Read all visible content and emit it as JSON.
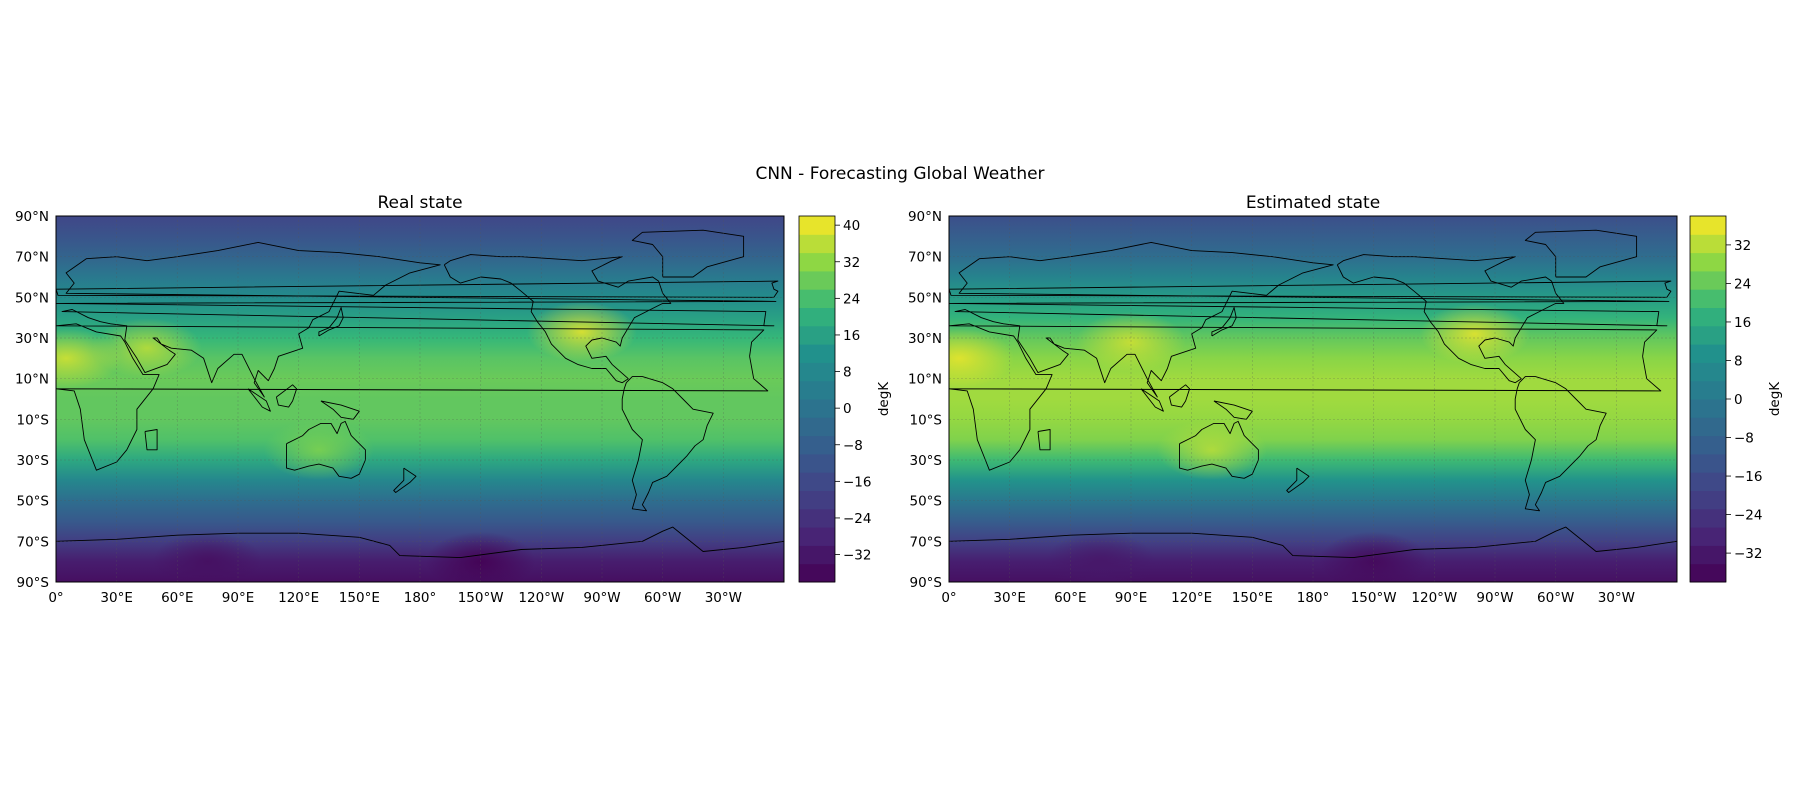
{
  "figure": {
    "suptitle": "CNN - Forecasting Global Weather"
  },
  "chart_data": [
    {
      "type": "heatmap",
      "title": "Real state",
      "projection": "PlateCarree, central longitude 180",
      "xticks": [
        "0°",
        "30°E",
        "60°E",
        "90°E",
        "120°E",
        "150°E",
        "180°",
        "150°W",
        "120°W",
        "90°W",
        "60°W",
        "30°W"
      ],
      "yticks": [
        "90°N",
        "70°N",
        "50°N",
        "30°N",
        "10°N",
        "10°S",
        "30°S",
        "50°S",
        "70°S",
        "90°S"
      ],
      "xlim": [
        0,
        360
      ],
      "ylim": [
        -90,
        90
      ],
      "grid": true,
      "coastlines": true,
      "colormap": "viridis",
      "colorbar": {
        "label": "degK",
        "ticks": [
          40,
          32,
          24,
          16,
          8,
          0,
          -8,
          -16,
          -24,
          -32
        ],
        "tick_labels": [
          "40",
          "32",
          "24",
          "16",
          "8",
          "0",
          "−8",
          "−16",
          "−24",
          "−32"
        ],
        "range": [
          -38,
          42
        ]
      },
      "latitude_profile": {
        "lat": [
          90,
          80,
          70,
          60,
          50,
          40,
          30,
          20,
          10,
          0,
          -10,
          -20,
          -30,
          -40,
          -50,
          -60,
          -70,
          -80,
          -90
        ],
        "value": [
          -17,
          -12,
          -6,
          2,
          10,
          16,
          22,
          26,
          28,
          27,
          27,
          25,
          18,
          8,
          -2,
          -10,
          -20,
          -30,
          -34
        ]
      },
      "hotspots": [
        {
          "lon": 5,
          "lat": 20,
          "value": 38
        },
        {
          "lon": 260,
          "lat": 33,
          "value": 40
        },
        {
          "lon": 45,
          "lat": 25,
          "value": 36
        },
        {
          "lon": 130,
          "lat": -25,
          "value": 30
        },
        {
          "lon": 210,
          "lat": -80,
          "value": -38
        },
        {
          "lon": 75,
          "lat": -80,
          "value": -34
        }
      ]
    },
    {
      "type": "heatmap",
      "title": "Estimated state",
      "projection": "PlateCarree, central longitude 180",
      "xticks": [
        "0°",
        "30°E",
        "60°E",
        "90°E",
        "120°E",
        "150°E",
        "180°",
        "150°W",
        "120°W",
        "90°W",
        "60°W",
        "30°W"
      ],
      "yticks": [
        "90°N",
        "70°N",
        "50°N",
        "30°N",
        "10°N",
        "10°S",
        "30°S",
        "50°S",
        "70°S",
        "90°S"
      ],
      "xlim": [
        0,
        360
      ],
      "ylim": [
        -90,
        90
      ],
      "grid": true,
      "coastlines": true,
      "colormap": "viridis",
      "colorbar": {
        "label": "degK",
        "ticks": [
          32,
          24,
          16,
          8,
          0,
          -8,
          -16,
          -24,
          -32
        ],
        "tick_labels": [
          "32",
          "24",
          "16",
          "8",
          "0",
          "−8",
          "−16",
          "−24",
          "−32"
        ],
        "range": [
          -38,
          38
        ]
      },
      "latitude_profile": {
        "lat": [
          90,
          80,
          70,
          60,
          50,
          40,
          30,
          20,
          10,
          0,
          -10,
          -20,
          -30,
          -40,
          -50,
          -60,
          -70,
          -80,
          -90
        ],
        "value": [
          -15,
          -10,
          -4,
          4,
          12,
          18,
          24,
          28,
          30,
          30,
          29,
          27,
          20,
          10,
          0,
          -10,
          -20,
          -30,
          -34
        ]
      },
      "hotspots": [
        {
          "lon": 5,
          "lat": 20,
          "value": 36
        },
        {
          "lon": 260,
          "lat": 32,
          "value": 36
        },
        {
          "lon": 90,
          "lat": 28,
          "value": 34
        },
        {
          "lon": 130,
          "lat": -25,
          "value": 32
        },
        {
          "lon": 210,
          "lat": -80,
          "value": -36
        },
        {
          "lon": 75,
          "lat": -80,
          "value": -32
        }
      ]
    }
  ]
}
